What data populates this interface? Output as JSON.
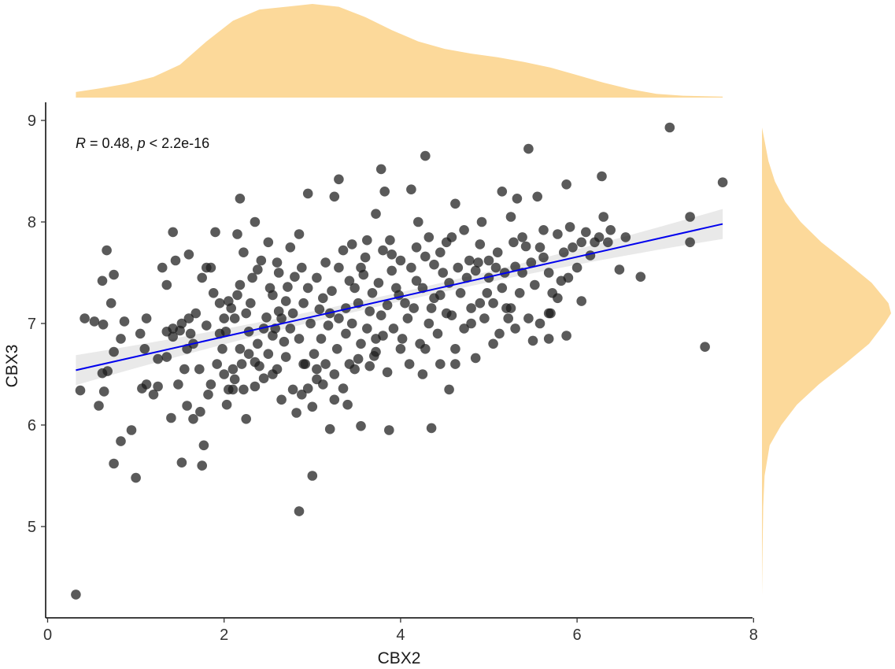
{
  "chart_data": {
    "type": "scatter",
    "xlabel": "CBX2",
    "ylabel": "CBX3",
    "xlim": [
      0,
      8
    ],
    "ylim": [
      4.3,
      9.15
    ],
    "x_ticks": [
      "0",
      "2",
      "4",
      "6",
      "8"
    ],
    "y_ticks": [
      "5",
      "6",
      "7",
      "8",
      "9"
    ],
    "annotation": {
      "r_label": "R",
      "r_value": " = 0.48, ",
      "p_label": "p",
      "p_value": " < 2.2e-16"
    },
    "regression": {
      "x0": 0.32,
      "y0": 6.54,
      "x1": 7.65,
      "y1": 7.98,
      "color": "#0000ee",
      "band_color": "#cfcfcf"
    },
    "point_color": "#1a1a1a",
    "marginal_color": "#fcd99a",
    "marginal_x_density": [
      [
        0.32,
        0.06
      ],
      [
        0.6,
        0.1
      ],
      [
        0.9,
        0.15
      ],
      [
        1.2,
        0.22
      ],
      [
        1.5,
        0.35
      ],
      [
        1.8,
        0.6
      ],
      [
        2.1,
        0.82
      ],
      [
        2.4,
        0.94
      ],
      [
        2.7,
        0.97
      ],
      [
        3.0,
        1.0
      ],
      [
        3.3,
        0.97
      ],
      [
        3.6,
        0.86
      ],
      [
        3.9,
        0.72
      ],
      [
        4.2,
        0.6
      ],
      [
        4.5,
        0.52
      ],
      [
        4.8,
        0.47
      ],
      [
        5.1,
        0.43
      ],
      [
        5.4,
        0.38
      ],
      [
        5.7,
        0.32
      ],
      [
        6.0,
        0.24
      ],
      [
        6.3,
        0.16
      ],
      [
        6.6,
        0.09
      ],
      [
        6.9,
        0.04
      ],
      [
        7.2,
        0.02
      ],
      [
        7.65,
        0.01
      ]
    ],
    "marginal_y_density": [
      [
        4.32,
        0.0
      ],
      [
        4.8,
        0.005
      ],
      [
        5.2,
        0.01
      ],
      [
        5.5,
        0.02
      ],
      [
        5.8,
        0.06
      ],
      [
        6.0,
        0.15
      ],
      [
        6.2,
        0.27
      ],
      [
        6.4,
        0.44
      ],
      [
        6.6,
        0.64
      ],
      [
        6.8,
        0.83
      ],
      [
        7.0,
        0.95
      ],
      [
        7.1,
        1.0
      ],
      [
        7.2,
        0.98
      ],
      [
        7.4,
        0.85
      ],
      [
        7.6,
        0.66
      ],
      [
        7.8,
        0.46
      ],
      [
        8.0,
        0.3
      ],
      [
        8.2,
        0.18
      ],
      [
        8.4,
        0.1
      ],
      [
        8.6,
        0.05
      ],
      [
        8.8,
        0.02
      ],
      [
        8.93,
        0.0
      ]
    ],
    "points": [
      [
        0.32,
        4.33
      ],
      [
        2.85,
        5.15
      ],
      [
        3.0,
        5.5
      ],
      [
        1.0,
        5.48
      ],
      [
        0.75,
        5.62
      ],
      [
        1.52,
        5.63
      ],
      [
        1.75,
        5.6
      ],
      [
        1.77,
        5.8
      ],
      [
        0.83,
        5.84
      ],
      [
        0.95,
        5.95
      ],
      [
        3.87,
        5.95
      ],
      [
        4.35,
        5.97
      ],
      [
        3.55,
        5.99
      ],
      [
        3.2,
        5.96
      ],
      [
        1.4,
        6.07
      ],
      [
        1.65,
        6.06
      ],
      [
        1.73,
        6.13
      ],
      [
        0.58,
        6.19
      ],
      [
        1.58,
        6.19
      ],
      [
        2.03,
        6.2
      ],
      [
        2.25,
        6.06
      ],
      [
        2.35,
        6.38
      ],
      [
        2.45,
        6.46
      ],
      [
        2.6,
        6.55
      ],
      [
        2.7,
        6.67
      ],
      [
        2.82,
        6.12
      ],
      [
        2.88,
        6.3
      ],
      [
        2.95,
        6.36
      ],
      [
        3.05,
        6.45
      ],
      [
        3.25,
        6.25
      ],
      [
        3.35,
        6.36
      ],
      [
        3.48,
        6.55
      ],
      [
        3.7,
        6.68
      ],
      [
        3.85,
        6.52
      ],
      [
        4.0,
        6.75
      ],
      [
        4.25,
        6.5
      ],
      [
        4.55,
        6.35
      ],
      [
        4.85,
        6.66
      ],
      [
        5.05,
        6.8
      ],
      [
        5.3,
        6.95
      ],
      [
        5.5,
        6.83
      ],
      [
        5.88,
        6.88
      ],
      [
        7.45,
        6.77
      ],
      [
        0.37,
        6.34
      ],
      [
        0.64,
        6.33
      ],
      [
        0.62,
        6.51
      ],
      [
        0.68,
        6.53
      ],
      [
        0.75,
        6.72
      ],
      [
        0.83,
        6.85
      ],
      [
        1.07,
        6.36
      ],
      [
        1.12,
        6.4
      ],
      [
        1.2,
        6.3
      ],
      [
        1.25,
        6.38
      ],
      [
        1.35,
        6.67
      ],
      [
        1.42,
        6.87
      ],
      [
        1.5,
        6.93
      ],
      [
        1.6,
        7.05
      ],
      [
        1.68,
        7.1
      ],
      [
        1.8,
        6.98
      ],
      [
        1.88,
        7.3
      ],
      [
        1.95,
        6.9
      ],
      [
        2.05,
        7.22
      ],
      [
        2.12,
        7.05
      ],
      [
        2.18,
        7.38
      ],
      [
        2.22,
        7.7
      ],
      [
        2.3,
        7.2
      ],
      [
        2.38,
        7.53
      ],
      [
        2.48,
        7.06
      ],
      [
        2.55,
        7.28
      ],
      [
        2.62,
        7.12
      ],
      [
        2.72,
        7.36
      ],
      [
        2.8,
        7.46
      ],
      [
        2.9,
        7.2
      ],
      [
        2.98,
        7.0
      ],
      [
        3.08,
        7.14
      ],
      [
        3.15,
        7.6
      ],
      [
        3.22,
        7.32
      ],
      [
        3.3,
        7.05
      ],
      [
        3.42,
        7.42
      ],
      [
        3.52,
        7.2
      ],
      [
        3.6,
        7.65
      ],
      [
        3.68,
        7.3
      ],
      [
        3.78,
        7.08
      ],
      [
        3.9,
        7.52
      ],
      [
        3.98,
        7.28
      ],
      [
        4.08,
        7.05
      ],
      [
        4.18,
        7.42
      ],
      [
        4.28,
        7.66
      ],
      [
        4.38,
        7.25
      ],
      [
        4.48,
        7.5
      ],
      [
        4.58,
        7.08
      ],
      [
        4.68,
        7.3
      ],
      [
        4.78,
        7.62
      ],
      [
        4.9,
        7.2
      ],
      [
        5.0,
        7.45
      ],
      [
        5.1,
        7.7
      ],
      [
        5.2,
        7.15
      ],
      [
        5.3,
        7.56
      ],
      [
        5.42,
        7.76
      ],
      [
        5.52,
        7.38
      ],
      [
        5.62,
        7.65
      ],
      [
        5.72,
        7.3
      ],
      [
        5.82,
        7.42
      ],
      [
        5.95,
        7.75
      ],
      [
        6.05,
        7.22
      ],
      [
        6.15,
        7.67
      ],
      [
        6.25,
        7.85
      ],
      [
        6.3,
        8.05
      ],
      [
        6.35,
        7.8
      ],
      [
        6.48,
        7.53
      ],
      [
        6.72,
        7.46
      ],
      [
        7.28,
        7.8
      ],
      [
        7.28,
        8.05
      ],
      [
        7.05,
        8.93
      ],
      [
        7.65,
        8.39
      ],
      [
        6.28,
        8.45
      ],
      [
        5.88,
        8.37
      ],
      [
        5.55,
        8.25
      ],
      [
        5.45,
        8.72
      ],
      [
        5.32,
        8.23
      ],
      [
        5.15,
        8.3
      ],
      [
        4.62,
        8.18
      ],
      [
        4.28,
        8.65
      ],
      [
        4.12,
        8.32
      ],
      [
        3.78,
        8.52
      ],
      [
        3.82,
        8.3
      ],
      [
        3.3,
        8.42
      ],
      [
        3.25,
        8.25
      ],
      [
        2.95,
        8.28
      ],
      [
        2.18,
        8.23
      ],
      [
        1.42,
        7.9
      ],
      [
        1.9,
        7.9
      ],
      [
        2.15,
        7.88
      ],
      [
        2.35,
        8.0
      ],
      [
        2.85,
        7.88
      ],
      [
        3.72,
        8.08
      ],
      [
        3.88,
        7.82
      ],
      [
        4.2,
        8.0
      ],
      [
        4.92,
        8.0
      ],
      [
        5.25,
        8.05
      ],
      [
        0.67,
        7.72
      ],
      [
        0.75,
        7.48
      ],
      [
        0.62,
        7.42
      ],
      [
        0.72,
        7.2
      ],
      [
        0.63,
        6.99
      ],
      [
        0.53,
        7.02
      ],
      [
        0.42,
        7.05
      ],
      [
        0.87,
        7.02
      ],
      [
        1.05,
        6.9
      ],
      [
        1.1,
        6.75
      ],
      [
        1.3,
        7.55
      ],
      [
        1.35,
        7.38
      ],
      [
        1.45,
        7.62
      ],
      [
        1.6,
        7.68
      ],
      [
        1.75,
        7.45
      ],
      [
        1.8,
        7.55
      ],
      [
        1.65,
        6.8
      ],
      [
        2.0,
        6.5
      ],
      [
        2.05,
        6.35
      ],
      [
        2.12,
        6.45
      ],
      [
        2.2,
        6.6
      ],
      [
        2.28,
        6.7
      ],
      [
        2.4,
        6.58
      ],
      [
        2.5,
        6.7
      ],
      [
        2.58,
        6.95
      ],
      [
        2.68,
        6.82
      ],
      [
        2.75,
        6.95
      ],
      [
        2.85,
        6.85
      ],
      [
        2.92,
        6.6
      ],
      [
        3.02,
        6.7
      ],
      [
        3.1,
        6.85
      ],
      [
        3.18,
        6.98
      ],
      [
        3.28,
        6.75
      ],
      [
        3.38,
        6.9
      ],
      [
        3.45,
        7.0
      ],
      [
        3.55,
        6.8
      ],
      [
        3.62,
        6.95
      ],
      [
        3.72,
        6.72
      ],
      [
        3.8,
        6.88
      ],
      [
        3.92,
        6.95
      ],
      [
        4.02,
        6.85
      ],
      [
        4.15,
        7.15
      ],
      [
        4.22,
        6.8
      ],
      [
        4.32,
        7.0
      ],
      [
        4.42,
        6.9
      ],
      [
        4.52,
        7.1
      ],
      [
        4.62,
        6.75
      ],
      [
        4.72,
        6.95
      ],
      [
        4.8,
        7.15
      ],
      [
        4.95,
        7.05
      ],
      [
        5.05,
        7.2
      ],
      [
        5.15,
        7.35
      ],
      [
        5.25,
        7.15
      ],
      [
        5.35,
        7.3
      ],
      [
        5.45,
        7.05
      ],
      [
        5.58,
        7.0
      ],
      [
        5.68,
        7.1
      ],
      [
        5.78,
        7.25
      ],
      [
        5.9,
        7.45
      ],
      [
        6.0,
        7.55
      ],
      [
        2.08,
        7.15
      ],
      [
        2.15,
        7.28
      ],
      [
        2.25,
        7.1
      ],
      [
        2.32,
        7.45
      ],
      [
        2.42,
        7.62
      ],
      [
        2.52,
        7.35
      ],
      [
        2.62,
        7.5
      ],
      [
        2.7,
        7.22
      ],
      [
        2.78,
        7.1
      ],
      [
        2.88,
        7.55
      ],
      [
        2.95,
        7.35
      ],
      [
        3.05,
        7.45
      ],
      [
        3.12,
        7.25
      ],
      [
        3.2,
        7.1
      ],
      [
        3.3,
        7.55
      ],
      [
        3.38,
        7.15
      ],
      [
        3.48,
        7.35
      ],
      [
        3.58,
        7.48
      ],
      [
        3.65,
        7.12
      ],
      [
        3.75,
        7.4
      ],
      [
        3.85,
        7.18
      ],
      [
        3.95,
        7.35
      ],
      [
        4.05,
        7.2
      ],
      [
        4.12,
        7.55
      ],
      [
        4.25,
        7.35
      ],
      [
        4.35,
        7.15
      ],
      [
        4.45,
        7.28
      ],
      [
        4.55,
        7.4
      ],
      [
        4.65,
        7.55
      ],
      [
        4.75,
        7.45
      ],
      [
        4.88,
        7.6
      ],
      [
        4.98,
        7.3
      ],
      [
        5.08,
        7.55
      ],
      [
        5.18,
        7.5
      ],
      [
        5.28,
        7.8
      ],
      [
        5.38,
        7.85
      ],
      [
        5.48,
        7.6
      ],
      [
        5.58,
        7.75
      ],
      [
        5.68,
        7.5
      ],
      [
        5.78,
        7.88
      ],
      [
        5.92,
        7.95
      ],
      [
        6.1,
        7.9
      ],
      [
        6.2,
        7.8
      ],
      [
        6.38,
        7.92
      ],
      [
        5.62,
        7.92
      ],
      [
        4.9,
        7.78
      ],
      [
        4.72,
        7.92
      ],
      [
        4.58,
        7.85
      ],
      [
        4.45,
        7.7
      ],
      [
        4.32,
        7.85
      ],
      [
        1.55,
        6.55
      ],
      [
        1.48,
        6.4
      ],
      [
        1.85,
        6.4
      ],
      [
        1.92,
        6.6
      ],
      [
        1.98,
        6.75
      ],
      [
        2.02,
        6.92
      ],
      [
        1.82,
        6.3
      ],
      [
        1.72,
        6.55
      ],
      [
        1.58,
        6.75
      ],
      [
        1.42,
        6.95
      ],
      [
        1.35,
        6.92
      ],
      [
        1.52,
        7.0
      ],
      [
        1.62,
        6.9
      ],
      [
        2.1,
        6.55
      ],
      [
        2.18,
        6.75
      ],
      [
        2.28,
        6.92
      ],
      [
        2.38,
        6.8
      ],
      [
        2.45,
        6.95
      ],
      [
        2.55,
        6.88
      ],
      [
        2.65,
        7.05
      ],
      [
        3.05,
        6.55
      ],
      [
        3.15,
        6.6
      ],
      [
        3.25,
        6.5
      ],
      [
        3.42,
        6.6
      ],
      [
        3.52,
        6.65
      ],
      [
        3.65,
        6.58
      ],
      [
        3.72,
        6.85
      ],
      [
        4.1,
        6.6
      ],
      [
        4.28,
        6.75
      ],
      [
        4.45,
        6.6
      ],
      [
        3.0,
        6.18
      ],
      [
        3.12,
        6.4
      ],
      [
        3.4,
        6.2
      ],
      [
        2.9,
        6.6
      ],
      [
        2.78,
        6.35
      ],
      [
        2.65,
        6.25
      ],
      [
        2.55,
        6.5
      ],
      [
        2.35,
        6.62
      ],
      [
        2.22,
        6.35
      ],
      [
        2.1,
        6.35
      ],
      [
        4.62,
        6.6
      ],
      [
        4.8,
        7.0
      ],
      [
        5.12,
        6.9
      ],
      [
        5.22,
        7.05
      ],
      [
        5.68,
        6.85
      ],
      [
        5.7,
        7.1
      ],
      [
        5.38,
        7.5
      ],
      [
        5.85,
        7.7
      ],
      [
        6.05,
        7.8
      ],
      [
        6.55,
        7.85
      ],
      [
        1.25,
        6.65
      ],
      [
        1.12,
        7.05
      ],
      [
        1.85,
        7.55
      ],
      [
        1.95,
        7.2
      ],
      [
        2.0,
        7.05
      ],
      [
        2.5,
        7.8
      ],
      [
        2.6,
        7.6
      ],
      [
        2.75,
        7.75
      ],
      [
        3.35,
        7.72
      ],
      [
        3.45,
        7.78
      ],
      [
        3.55,
        7.55
      ],
      [
        3.9,
        7.68
      ],
      [
        4.0,
        7.62
      ],
      [
        4.18,
        7.75
      ],
      [
        4.38,
        7.58
      ],
      [
        4.52,
        7.8
      ],
      [
        4.85,
        7.52
      ],
      [
        5.0,
        7.62
      ],
      [
        3.62,
        7.82
      ],
      [
        3.8,
        7.72
      ]
    ]
  }
}
